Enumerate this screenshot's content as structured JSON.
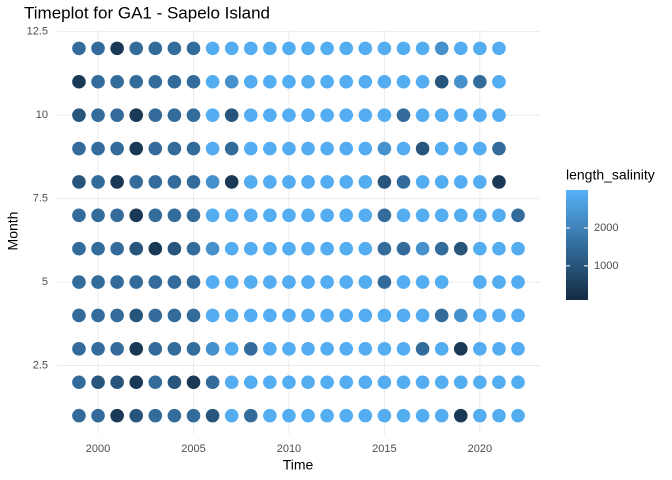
{
  "chart_data": {
    "type": "scatter",
    "title": "Timeplot for GA1 - Sapelo Island",
    "x_label": "Time",
    "y_label": "Month",
    "xlim": [
      1997.85,
      2023.15
    ],
    "xticks": [
      2000,
      2005,
      2010,
      2015,
      2020
    ],
    "ylim": [
      0.45,
      12.55
    ],
    "yticks": [
      2.5,
      5.0,
      7.5,
      10.0,
      12.5
    ],
    "grid": true,
    "color_legend": {
      "title": "length_salinity",
      "lim": [
        100,
        3000
      ],
      "ticks": [
        1000,
        2000
      ],
      "low_color": "#132B43",
      "high_color": "#56B1F7"
    },
    "x": [
      1999,
      2000,
      2001,
      2002,
      2003,
      2004,
      2005,
      2006,
      2007,
      2008,
      2009,
      2010,
      2011,
      2012,
      2013,
      2014,
      2015,
      2016,
      2017,
      2018,
      2019,
      2020,
      2021,
      1999,
      2000,
      2001,
      2002,
      2003,
      2004,
      2005,
      2006,
      2007,
      2008,
      2009,
      2010,
      2011,
      2012,
      2013,
      2014,
      2015,
      2016,
      2017,
      2018,
      2019,
      2020,
      2021,
      1999,
      2000,
      2001,
      2002,
      2003,
      2004,
      2005,
      2006,
      2007,
      2008,
      2009,
      2010,
      2011,
      2012,
      2013,
      2014,
      2015,
      2016,
      2017,
      2018,
      2019,
      2020,
      2021,
      1999,
      2000,
      2001,
      2002,
      2003,
      2004,
      2005,
      2006,
      2007,
      2008,
      2009,
      2010,
      2011,
      2012,
      2013,
      2014,
      2015,
      2016,
      2017,
      2018,
      2019,
      2020,
      2021,
      1999,
      2000,
      2001,
      2002,
      2003,
      2004,
      2005,
      2006,
      2007,
      2008,
      2009,
      2010,
      2011,
      2012,
      2013,
      2014,
      2015,
      2016,
      2017,
      2018,
      2019,
      2020,
      2021,
      1999,
      2000,
      2001,
      2002,
      2003,
      2004,
      2005,
      2006,
      2007,
      2008,
      2009,
      2010,
      2011,
      2012,
      2013,
      2014,
      2015,
      2016,
      2017,
      2018,
      2019,
      2020,
      2021,
      2022,
      1999,
      2000,
      2001,
      2002,
      2003,
      2004,
      2005,
      2006,
      2007,
      2008,
      2009,
      2010,
      2011,
      2012,
      2013,
      2014,
      2015,
      2016,
      2017,
      2018,
      2019,
      2020,
      2021,
      2022,
      1999,
      2000,
      2001,
      2002,
      2003,
      2004,
      2005,
      2006,
      2007,
      2008,
      2009,
      2010,
      2011,
      2012,
      2013,
      2014,
      2015,
      2016,
      2017,
      2018,
      2020,
      2021,
      2022,
      1999,
      2000,
      2001,
      2002,
      2003,
      2004,
      2005,
      2006,
      2007,
      2008,
      2009,
      2010,
      2011,
      2012,
      2013,
      2014,
      2015,
      2016,
      2017,
      2018,
      2019,
      2020,
      2021,
      2022,
      1999,
      2000,
      2001,
      2002,
      2003,
      2004,
      2005,
      2006,
      2007,
      2008,
      2009,
      2010,
      2011,
      2012,
      2013,
      2014,
      2015,
      2016,
      2017,
      2018,
      2019,
      2020,
      2021,
      2022,
      1999,
      2000,
      2001,
      2002,
      2003,
      2004,
      2005,
      2006,
      2007,
      2008,
      2009,
      2010,
      2011,
      2012,
      2013,
      2014,
      2015,
      2016,
      2017,
      2018,
      2019,
      2020,
      2021,
      2022,
      1999,
      2000,
      2001,
      2002,
      2003,
      2004,
      2005,
      2006,
      2007,
      2008,
      2009,
      2010,
      2011,
      2012,
      2013,
      2014,
      2015,
      2016,
      2017,
      2018,
      2019,
      2020,
      2021,
      2022
    ],
    "y": [
      12,
      12,
      12,
      12,
      12,
      12,
      12,
      12,
      12,
      12,
      12,
      12,
      12,
      12,
      12,
      12,
      12,
      12,
      12,
      12,
      12,
      12,
      12,
      11,
      11,
      11,
      11,
      11,
      11,
      11,
      11,
      11,
      11,
      11,
      11,
      11,
      11,
      11,
      11,
      11,
      11,
      11,
      11,
      11,
      11,
      11,
      10,
      10,
      10,
      10,
      10,
      10,
      10,
      10,
      10,
      10,
      10,
      10,
      10,
      10,
      10,
      10,
      10,
      10,
      10,
      10,
      10,
      10,
      10,
      9,
      9,
      9,
      9,
      9,
      9,
      9,
      9,
      9,
      9,
      9,
      9,
      9,
      9,
      9,
      9,
      9,
      9,
      9,
      9,
      9,
      9,
      9,
      8,
      8,
      8,
      8,
      8,
      8,
      8,
      8,
      8,
      8,
      8,
      8,
      8,
      8,
      8,
      8,
      8,
      8,
      8,
      8,
      8,
      8,
      8,
      7,
      7,
      7,
      7,
      7,
      7,
      7,
      7,
      7,
      7,
      7,
      7,
      7,
      7,
      7,
      7,
      7,
      7,
      7,
      7,
      7,
      7,
      7,
      7,
      6,
      6,
      6,
      6,
      6,
      6,
      6,
      6,
      6,
      6,
      6,
      6,
      6,
      6,
      6,
      6,
      6,
      6,
      6,
      6,
      6,
      6,
      6,
      6,
      5,
      5,
      5,
      5,
      5,
      5,
      5,
      5,
      5,
      5,
      5,
      5,
      5,
      5,
      5,
      5,
      5,
      5,
      5,
      5,
      5,
      5,
      5,
      4,
      4,
      4,
      4,
      4,
      4,
      4,
      4,
      4,
      4,
      4,
      4,
      4,
      4,
      4,
      4,
      4,
      4,
      4,
      4,
      4,
      4,
      4,
      4,
      3,
      3,
      3,
      3,
      3,
      3,
      3,
      3,
      3,
      3,
      3,
      3,
      3,
      3,
      3,
      3,
      3,
      3,
      3,
      3,
      3,
      3,
      3,
      3,
      2,
      2,
      2,
      2,
      2,
      2,
      2,
      2,
      2,
      2,
      2,
      2,
      2,
      2,
      2,
      2,
      2,
      2,
      2,
      2,
      2,
      2,
      2,
      2,
      1,
      1,
      1,
      1,
      1,
      1,
      1,
      1,
      1,
      1,
      1,
      1,
      1,
      1,
      1,
      1,
      1,
      1,
      1,
      1,
      1,
      1,
      1,
      1
    ],
    "values": [
      1500,
      1500,
      400,
      1500,
      1500,
      1500,
      1500,
      2900,
      2900,
      2900,
      2900,
      2900,
      2900,
      2900,
      2900,
      2900,
      2900,
      2900,
      2900,
      2300,
      2900,
      2900,
      2900,
      400,
      1500,
      1500,
      1500,
      1500,
      1500,
      1500,
      2900,
      2300,
      2900,
      2900,
      2900,
      2900,
      2900,
      2900,
      2900,
      2900,
      2900,
      2900,
      1000,
      2300,
      1500,
      2900,
      1000,
      1500,
      1500,
      400,
      1500,
      1500,
      1500,
      2900,
      1000,
      2900,
      2900,
      2900,
      2900,
      2900,
      2900,
      2900,
      2900,
      1500,
      2900,
      2900,
      2900,
      2900,
      2900,
      1500,
      1500,
      1500,
      400,
      1500,
      1500,
      1500,
      2900,
      1500,
      2900,
      2900,
      2900,
      2900,
      2900,
      2900,
      2900,
      2300,
      2900,
      1000,
      2900,
      2900,
      2900,
      1500,
      1000,
      1500,
      400,
      1500,
      1500,
      1500,
      1500,
      2300,
      400,
      2900,
      2900,
      2900,
      2900,
      2900,
      2900,
      2900,
      1000,
      1500,
      2900,
      2900,
      2900,
      2900,
      400,
      1500,
      1500,
      1500,
      400,
      1500,
      1500,
      1500,
      2900,
      2900,
      2900,
      2900,
      2900,
      2900,
      2900,
      2900,
      2900,
      1500,
      2900,
      2900,
      2900,
      2900,
      2900,
      2900,
      1500,
      1500,
      1500,
      1500,
      1000,
      400,
      1000,
      1500,
      2300,
      2900,
      2900,
      2900,
      2900,
      2900,
      2900,
      2900,
      2900,
      1500,
      1500,
      2300,
      1500,
      1000,
      2900,
      2900,
      2900,
      1500,
      1500,
      1500,
      1500,
      1500,
      1500,
      1500,
      2900,
      2900,
      2900,
      2900,
      2900,
      2900,
      2900,
      2900,
      2900,
      1500,
      2900,
      2900,
      2900,
      2900,
      2900,
      2900,
      1500,
      1500,
      1500,
      1000,
      1500,
      1500,
      1500,
      2900,
      2900,
      2900,
      2900,
      2900,
      2900,
      2900,
      2900,
      2900,
      2900,
      2900,
      2900,
      1500,
      2300,
      2900,
      2900,
      2900,
      1500,
      1500,
      1500,
      400,
      1500,
      1500,
      1500,
      2300,
      2900,
      1500,
      2900,
      2900,
      2900,
      2900,
      2900,
      2900,
      2900,
      2900,
      1500,
      2900,
      400,
      2900,
      2900,
      2900,
      1500,
      1000,
      1000,
      400,
      1500,
      1000,
      400,
      1500,
      2900,
      2900,
      2900,
      2900,
      2900,
      2900,
      2900,
      2900,
      2900,
      2900,
      2900,
      2900,
      2900,
      2900,
      2900,
      2900,
      1500,
      1500,
      400,
      1000,
      1500,
      1500,
      1500,
      1000,
      2900,
      1500,
      2900,
      2900,
      2900,
      2900,
      2900,
      2900,
      2900,
      2900,
      2900,
      2900,
      400,
      2900,
      2900,
      2900
    ]
  }
}
